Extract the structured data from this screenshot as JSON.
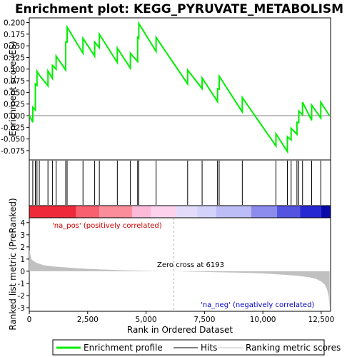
{
  "chart_data": {
    "type": "line",
    "title": "Enrichment plot: KEGG_PYRUVATE_METABOLISM",
    "xlabel": "Rank in Ordered Dataset",
    "ylabel_top": "Enrichment score (ES)",
    "ylabel_bottom": "Ranked list metric (PreRanked)",
    "xlim": [
      0,
      12900
    ],
    "x_ticks": [
      0,
      2500,
      5000,
      7500,
      10000,
      12500
    ],
    "x_tick_labels": [
      "0",
      "2,500",
      "5,000",
      "7,500",
      "10,000",
      "12,500"
    ],
    "es_ylim": [
      -0.095,
      0.21
    ],
    "es_ticks": [
      -0.075,
      -0.05,
      -0.025,
      0.0,
      0.025,
      0.05,
      0.075,
      0.1,
      0.125,
      0.15,
      0.175,
      0.2
    ],
    "es_tick_labels": [
      "-0.075",
      "-0.050",
      "-0.025",
      "0.000",
      "0.025",
      "0.050",
      "0.075",
      "0.100",
      "0.125",
      "0.150",
      "0.175",
      "0.200"
    ],
    "metric_ylim": [
      -3.3,
      4.4
    ],
    "metric_ticks": [
      -3,
      -2,
      -1,
      0,
      1,
      2,
      3,
      4
    ],
    "metric_tick_labels": [
      "-3",
      "-2",
      "-1",
      "0",
      "1",
      "2",
      "3",
      "4"
    ],
    "hits": [
      150,
      260,
      330,
      430,
      800,
      990,
      1150,
      1560,
      1620,
      2300,
      2800,
      3000,
      3770,
      4330,
      4640,
      4690,
      5430,
      6780,
      7400,
      8060,
      8130,
      9120,
      10560,
      11050,
      11210,
      11460,
      11540,
      11700,
      12090,
      12480
    ],
    "es_curve": {
      "x": [
        0,
        150,
        150,
        260,
        260,
        330,
        330,
        430,
        430,
        800,
        800,
        990,
        990,
        1150,
        1150,
        1560,
        1560,
        1620,
        1620,
        2300,
        2300,
        2800,
        2800,
        3000,
        3000,
        3770,
        3770,
        4330,
        4330,
        4640,
        4640,
        4690,
        4690,
        5430,
        5430,
        6780,
        6780,
        7400,
        7400,
        8060,
        8060,
        8130,
        8130,
        9120,
        9120,
        10560,
        10560,
        11050,
        11050,
        11210,
        11210,
        11460,
        11460,
        11540,
        11540,
        11700,
        11700,
        12090,
        12090,
        12480,
        12480,
        12850
      ],
      "y": [
        0.0,
        -0.014,
        0.018,
        0.012,
        0.068,
        0.065,
        0.095,
        0.087,
        0.087,
        0.064,
        0.096,
        0.08,
        0.108,
        0.1,
        0.128,
        0.098,
        0.158,
        0.158,
        0.19,
        0.134,
        0.166,
        0.128,
        0.158,
        0.146,
        0.175,
        0.114,
        0.145,
        0.102,
        0.134,
        0.116,
        0.168,
        0.166,
        0.198,
        0.138,
        0.168,
        0.068,
        0.098,
        0.058,
        0.081,
        0.03,
        0.058,
        0.057,
        0.085,
        0.008,
        0.039,
        -0.065,
        -0.039,
        -0.077,
        -0.045,
        -0.052,
        -0.027,
        -0.04,
        -0.014,
        -0.015,
        0.01,
        0.002,
        0.029,
        -0.01,
        0.023,
        -0.005,
        0.029,
        0.0
      ]
    },
    "metric_curve": {
      "x": [
        0,
        100,
        300,
        600,
        1000,
        2000,
        3000,
        4000,
        5000,
        6193,
        7000,
        8000,
        9000,
        10000,
        11000,
        11500,
        12000,
        12300,
        12500,
        12650,
        12750,
        12820,
        12860
      ],
      "y": [
        1.75,
        0.95,
        0.7,
        0.5,
        0.4,
        0.25,
        0.15,
        0.08,
        0.04,
        0.0,
        -0.04,
        -0.08,
        -0.12,
        -0.18,
        -0.3,
        -0.38,
        -0.5,
        -0.65,
        -0.85,
        -1.1,
        -1.5,
        -2.1,
        -3.0
      ]
    },
    "zero_cross": 6193,
    "annotations": {
      "pos_label": "'na_pos' (positively correlated)",
      "neg_label": "'na_neg' (negatively correlated)",
      "zero_label": "Zero cross at 6193"
    },
    "legend": [
      "Enrichment profile",
      "Hits",
      "Ranking metric scores"
    ],
    "colors": {
      "es_line": "#00ee00",
      "hits": "#000000",
      "metric_fill": "#c0c0c0",
      "pos_text": "#cc0000",
      "neg_text": "#0000cc",
      "zero_line": "#b0b0b0",
      "frame": "#000000"
    },
    "heat_segments": [
      {
        "from": 0,
        "to": 2000,
        "color": "#ee2a3a"
      },
      {
        "from": 2000,
        "to": 3000,
        "color": "#f86070"
      },
      {
        "from": 3000,
        "to": 4400,
        "color": "#fb8c99"
      },
      {
        "from": 4400,
        "to": 5200,
        "color": "#fcbad8"
      },
      {
        "from": 5200,
        "to": 6300,
        "color": "#fcd2ec"
      },
      {
        "from": 6300,
        "to": 7200,
        "color": "#e2dcfa"
      },
      {
        "from": 7200,
        "to": 8000,
        "color": "#d2d2fa"
      },
      {
        "from": 8000,
        "to": 9500,
        "color": "#bcbcf6"
      },
      {
        "from": 9500,
        "to": 10600,
        "color": "#8c8cee"
      },
      {
        "from": 10600,
        "to": 11600,
        "color": "#5454e0"
      },
      {
        "from": 11600,
        "to": 12500,
        "color": "#2828d2"
      },
      {
        "from": 12500,
        "to": 12900,
        "color": "#0a0aa8"
      }
    ]
  }
}
